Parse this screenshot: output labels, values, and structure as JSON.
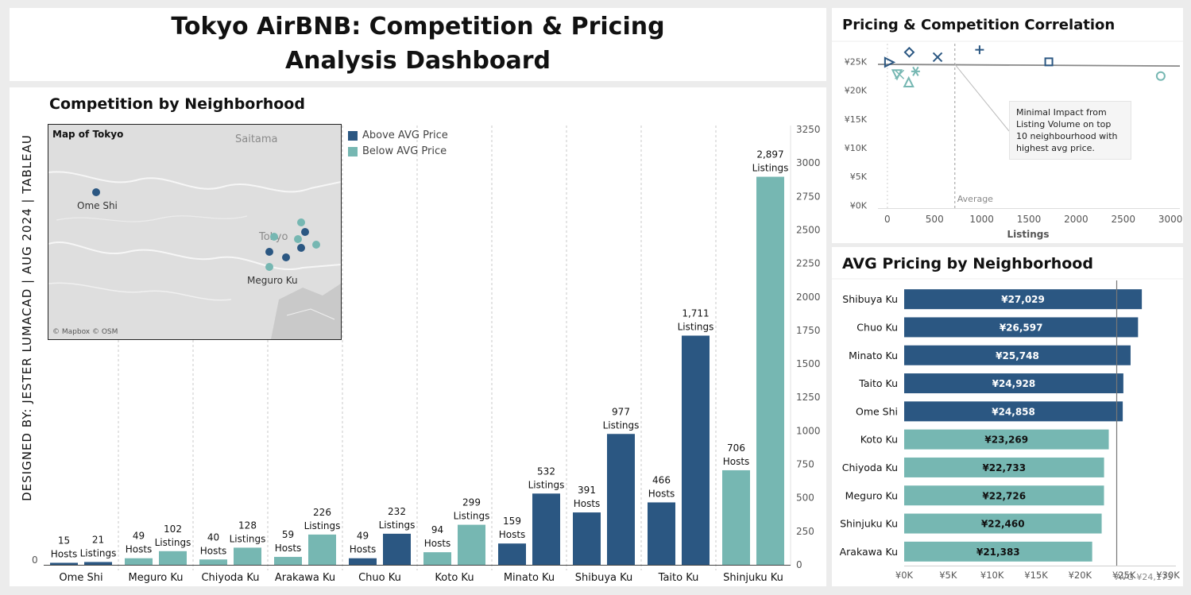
{
  "dashboard": {
    "title_line1": "Tokyo AirBNB: Competition & Pricing",
    "title_line2": "Analysis Dashboard",
    "credit": "DESIGNED BY:  JESTER LUMACAD  |  AUG 2024  |  TABLEAU"
  },
  "colors": {
    "above": "#2b5782",
    "below": "#76b7b2"
  },
  "competition": {
    "title": "Competition by Neighborhood",
    "legend": {
      "above": "Above AVG Price",
      "below": "Below AVG Price"
    },
    "map": {
      "title": "Map of Tokyo",
      "label_saitama": "Saitama",
      "label_tokyo": "Tokyo",
      "label_ome": "Ome Shi",
      "label_meguro": "Meguro Ku",
      "attribution": "© Mapbox © OSM"
    },
    "chart_data": {
      "type": "bar",
      "categories": [
        "Ome Shi",
        "Meguro Ku",
        "Chiyoda Ku",
        "Arakawa Ku",
        "Chuo Ku",
        "Koto Ku",
        "Minato Ku",
        "Shibuya Ku",
        "Taito Ku",
        "Shinjuku Ku"
      ],
      "series": [
        {
          "name": "Hosts",
          "values": [
            15,
            49,
            40,
            59,
            49,
            94,
            159,
            391,
            466,
            706
          ]
        },
        {
          "name": "Listings",
          "values": [
            21,
            102,
            128,
            226,
            232,
            299,
            532,
            977,
            1711,
            2897
          ]
        }
      ],
      "data_labels": [
        [
          "15",
          "49",
          "40",
          "59",
          "49",
          "94",
          "159",
          "391",
          "466",
          "706"
        ],
        [
          "21",
          "102",
          "128",
          "226",
          "232",
          "299",
          "532",
          "977",
          "1,711",
          "2,897"
        ]
      ],
      "price_group": [
        "above",
        "below",
        "below",
        "below",
        "above",
        "below",
        "above",
        "above",
        "above",
        "below"
      ],
      "ylim": [
        0,
        3250
      ],
      "yticks": [
        0,
        250,
        500,
        750,
        1000,
        1250,
        1500,
        1750,
        2000,
        2250,
        2500,
        2750,
        3000,
        3250
      ],
      "axis_side": "right"
    }
  },
  "scatter": {
    "title": "Pricing & Competition Correlation",
    "note": "Minimal Impact  from Listing Volume on top 10 neighbourhood with highest avg price.",
    "chart_data": {
      "type": "scatter",
      "points": [
        {
          "x": 21,
          "y": 24858,
          "marker": "triangle-right",
          "group": "above"
        },
        {
          "x": 102,
          "y": 22726,
          "marker": "triangle-down",
          "group": "below"
        },
        {
          "x": 128,
          "y": 22733,
          "marker": "x-thin",
          "group": "below"
        },
        {
          "x": 226,
          "y": 21383,
          "marker": "triangle-up",
          "group": "below"
        },
        {
          "x": 232,
          "y": 26597,
          "marker": "diamond",
          "group": "above"
        },
        {
          "x": 299,
          "y": 23269,
          "marker": "asterisk",
          "group": "below"
        },
        {
          "x": 532,
          "y": 25748,
          "marker": "x",
          "group": "above"
        },
        {
          "x": 977,
          "y": 27029,
          "marker": "plus",
          "group": "above"
        },
        {
          "x": 1711,
          "y": 24928,
          "marker": "square",
          "group": "above"
        },
        {
          "x": 2897,
          "y": 22460,
          "marker": "circle",
          "group": "below"
        }
      ],
      "trend": {
        "y_at_0": 24500,
        "y_at_3100": 24200
      },
      "average_x": 715,
      "average_label": "Average",
      "xlabel": "Listings",
      "xlim": [
        -100,
        3100
      ],
      "ylim": [
        -500,
        28500
      ],
      "xticks": [
        0,
        500,
        1000,
        1500,
        2000,
        2500,
        3000
      ],
      "yticks": [
        0,
        5000,
        10000,
        15000,
        20000,
        25000
      ],
      "ytick_labels": [
        "¥0K",
        "¥5K",
        "¥10K",
        "¥15K",
        "¥20K",
        "¥25K"
      ]
    }
  },
  "pricing": {
    "title": "AVG Pricing by Neighborhood",
    "chart_data": {
      "type": "bar",
      "orientation": "horizontal",
      "categories": [
        "Shibuya Ku",
        "Chuo Ku",
        "Minato Ku",
        "Taito Ku",
        "Ome Shi",
        "Koto Ku",
        "Chiyoda Ku",
        "Meguro Ku",
        "Shinjuku Ku",
        "Arakawa Ku"
      ],
      "values": [
        27029,
        26597,
        25748,
        24928,
        24858,
        23269,
        22733,
        22726,
        22460,
        21383
      ],
      "labels": [
        "¥27,029",
        "¥26,597",
        "¥25,748",
        "¥24,928",
        "¥24,858",
        "¥23,269",
        "¥22,733",
        "¥22,726",
        "¥22,460",
        "¥21,383"
      ],
      "price_group": [
        "above",
        "above",
        "above",
        "above",
        "above",
        "below",
        "below",
        "below",
        "below",
        "below"
      ],
      "average": 24173,
      "average_label": "AVG ¥24,173",
      "xlim": [
        0,
        30000
      ],
      "xticks": [
        0,
        5000,
        10000,
        15000,
        20000,
        25000,
        30000
      ],
      "xtick_labels": [
        "¥0K",
        "¥5K",
        "¥10K",
        "¥15K",
        "¥20K",
        "¥25K",
        "¥30K"
      ]
    }
  }
}
